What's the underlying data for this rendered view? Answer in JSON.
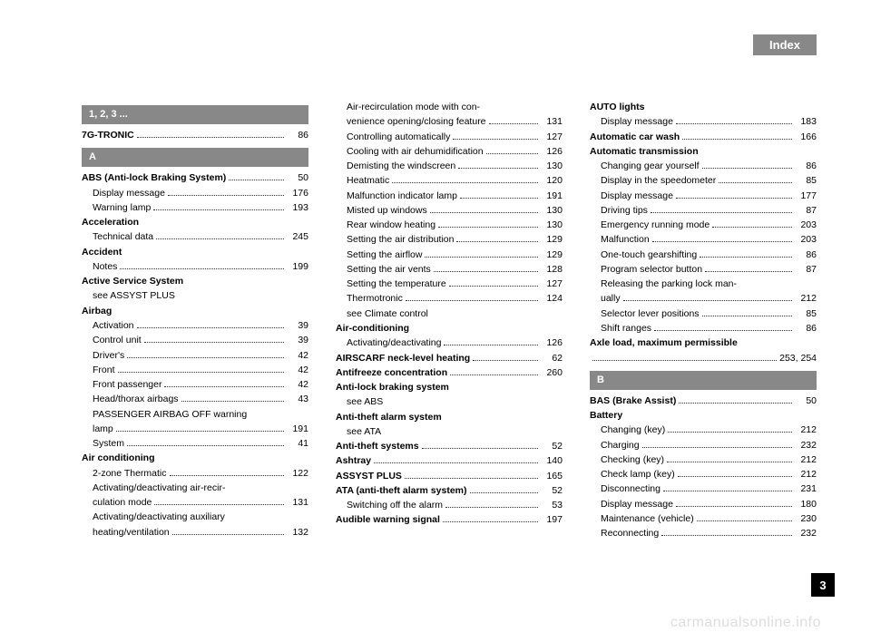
{
  "header": {
    "title": "Index"
  },
  "pageNumber": "3",
  "watermark": "carmanualsonline.info",
  "sections": {
    "s123": {
      "label": "1, 2, 3 ..."
    },
    "sA": {
      "label": "A"
    },
    "sB": {
      "label": "B"
    }
  },
  "col1": [
    {
      "type": "section",
      "key": "s123"
    },
    {
      "bold": true,
      "label": "7G-TRONIC",
      "page": "86"
    },
    {
      "type": "section",
      "key": "sA"
    },
    {
      "bold": true,
      "label": "ABS (Anti-lock Braking System)",
      "page": "50"
    },
    {
      "sub": true,
      "label": "Display message",
      "page": "176"
    },
    {
      "sub": true,
      "label": "Warning lamp",
      "page": "193"
    },
    {
      "bold": true,
      "label": "Acceleration",
      "nopage": true
    },
    {
      "sub": true,
      "label": "Technical data",
      "page": "245"
    },
    {
      "bold": true,
      "label": "Accident",
      "nopage": true
    },
    {
      "sub": true,
      "label": "Notes",
      "page": "199"
    },
    {
      "bold": true,
      "label": "Active Service System",
      "nopage": true
    },
    {
      "sub": true,
      "label": "see ASSYST PLUS",
      "nopage": true,
      "nodots": true
    },
    {
      "bold": true,
      "label": "Airbag",
      "nopage": true
    },
    {
      "sub": true,
      "label": "Activation",
      "page": "39"
    },
    {
      "sub": true,
      "label": "Control unit",
      "page": "39"
    },
    {
      "sub": true,
      "label": "Driver's",
      "page": "42"
    },
    {
      "sub": true,
      "label": "Front",
      "page": "42"
    },
    {
      "sub": true,
      "label": "Front passenger",
      "page": "42"
    },
    {
      "sub": true,
      "label": "Head/thorax airbags",
      "page": "43"
    },
    {
      "sub": true,
      "label": "PASSENGER AIRBAG OFF warning",
      "nopage": true,
      "nodots": true
    },
    {
      "sub": true,
      "label": "lamp",
      "page": "191"
    },
    {
      "sub": true,
      "label": "System",
      "page": "41"
    },
    {
      "bold": true,
      "label": "Air conditioning",
      "nopage": true
    },
    {
      "sub": true,
      "label": "2-zone Thermatic",
      "page": "122"
    },
    {
      "sub": true,
      "label": "Activating/deactivating air-recir-",
      "nopage": true,
      "nodots": true
    },
    {
      "sub": true,
      "label": "culation mode",
      "page": "131"
    },
    {
      "sub": true,
      "label": "Activating/deactivating auxiliary",
      "nopage": true,
      "nodots": true
    },
    {
      "sub": true,
      "label": "heating/ventilation",
      "page": "132"
    }
  ],
  "col2": [
    {
      "sub": true,
      "label": "Air-recirculation mode with con-",
      "nopage": true,
      "nodots": true
    },
    {
      "sub": true,
      "label": "venience opening/closing feature",
      "page": "131",
      "tight": true
    },
    {
      "sub": true,
      "label": "Controlling automatically",
      "page": "127"
    },
    {
      "sub": true,
      "label": "Cooling with air dehumidification",
      "page": "126",
      "tight": true
    },
    {
      "sub": true,
      "label": "Demisting the windscreen",
      "page": "130"
    },
    {
      "sub": true,
      "label": "Heatmatic",
      "page": "120"
    },
    {
      "sub": true,
      "label": "Malfunction indicator lamp",
      "page": "191"
    },
    {
      "sub": true,
      "label": "Misted up windows",
      "page": "130"
    },
    {
      "sub": true,
      "label": "Rear window heating",
      "page": "130"
    },
    {
      "sub": true,
      "label": "Setting the air distribution",
      "page": "129"
    },
    {
      "sub": true,
      "label": "Setting the airflow",
      "page": "129"
    },
    {
      "sub": true,
      "label": "Setting the air vents",
      "page": "128"
    },
    {
      "sub": true,
      "label": "Setting the temperature",
      "page": "127"
    },
    {
      "sub": true,
      "label": "Thermotronic",
      "page": "124"
    },
    {
      "sub": true,
      "label": "see Climate control",
      "nopage": true,
      "nodots": true
    },
    {
      "bold": true,
      "label": "Air-conditioning",
      "nopage": true
    },
    {
      "sub": true,
      "label": "Activating/deactivating",
      "page": "126"
    },
    {
      "bold": true,
      "label": "AIRSCARF neck-level heating",
      "page": "62"
    },
    {
      "bold": true,
      "label": "Antifreeze concentration",
      "page": "260"
    },
    {
      "bold": true,
      "label": "Anti-lock braking system",
      "nopage": true
    },
    {
      "sub": true,
      "label": "see ABS",
      "nopage": true,
      "nodots": true
    },
    {
      "bold": true,
      "label": "Anti-theft alarm system",
      "nopage": true
    },
    {
      "sub": true,
      "label": "see ATA",
      "nopage": true,
      "nodots": true
    },
    {
      "bold": true,
      "label": "Anti-theft systems",
      "page": "52"
    },
    {
      "bold": true,
      "label": "Ashtray",
      "page": "140"
    },
    {
      "bold": true,
      "label": "ASSYST PLUS",
      "page": "165"
    },
    {
      "bold": true,
      "label": "ATA (anti-theft alarm system)",
      "page": "52"
    },
    {
      "sub": true,
      "label": "Switching off the alarm",
      "page": "53"
    },
    {
      "bold": true,
      "label": "Audible warning signal",
      "page": "197"
    }
  ],
  "col3": [
    {
      "bold": true,
      "label": "AUTO lights",
      "nopage": true
    },
    {
      "sub": true,
      "label": "Display message",
      "page": "183"
    },
    {
      "bold": true,
      "label": "Automatic car wash",
      "page": "166"
    },
    {
      "bold": true,
      "label": "Automatic transmission",
      "nopage": true
    },
    {
      "sub": true,
      "label": "Changing gear yourself",
      "page": "86"
    },
    {
      "sub": true,
      "label": "Display in the speedometer",
      "page": "85"
    },
    {
      "sub": true,
      "label": "Display message",
      "page": "177"
    },
    {
      "sub": true,
      "label": "Driving tips",
      "page": "87"
    },
    {
      "sub": true,
      "label": "Emergency running mode",
      "page": "203"
    },
    {
      "sub": true,
      "label": "Malfunction",
      "page": "203"
    },
    {
      "sub": true,
      "label": "One-touch gearshifting",
      "page": "86"
    },
    {
      "sub": true,
      "label": "Program selector button",
      "page": "87"
    },
    {
      "sub": true,
      "label": "Releasing the parking lock man-",
      "nopage": true,
      "nodots": true
    },
    {
      "sub": true,
      "label": "ually",
      "page": "212"
    },
    {
      "sub": true,
      "label": "Selector lever positions",
      "page": "85"
    },
    {
      "sub": true,
      "label": "Shift ranges",
      "page": "86"
    },
    {
      "bold": true,
      "label": "Axle load, maximum permissible",
      "nopage": true,
      "nodots": true
    },
    {
      "label": "",
      "page": "253, 254"
    },
    {
      "type": "section",
      "key": "sB"
    },
    {
      "bold": true,
      "label": "BAS (Brake Assist)",
      "page": "50"
    },
    {
      "bold": true,
      "label": "Battery",
      "nopage": true
    },
    {
      "sub": true,
      "label": "Changing (key)",
      "page": "212"
    },
    {
      "sub": true,
      "label": "Charging",
      "page": "232"
    },
    {
      "sub": true,
      "label": "Checking (key)",
      "page": "212"
    },
    {
      "sub": true,
      "label": "Check lamp (key)",
      "page": "212"
    },
    {
      "sub": true,
      "label": "Disconnecting",
      "page": "231"
    },
    {
      "sub": true,
      "label": "Display message",
      "page": "180"
    },
    {
      "sub": true,
      "label": "Maintenance (vehicle)",
      "page": "230"
    },
    {
      "sub": true,
      "label": "Reconnecting",
      "page": "232"
    }
  ]
}
